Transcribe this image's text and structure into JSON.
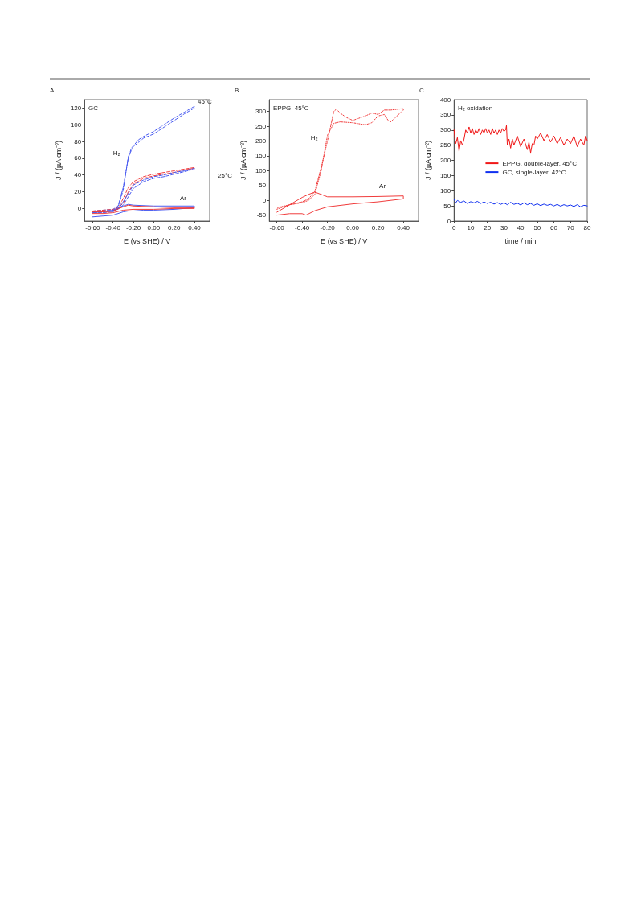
{
  "chart_data": [
    {
      "type": "line",
      "xlabel": "E (vs SHE) / V",
      "ylabel": "J / (µA cm⁻²)",
      "annotations": [
        "A",
        "GC",
        {
          "text": "45°C",
          "x": 0.4,
          "y": 122
        },
        {
          "text": "H₂",
          "x": -0.25,
          "y": 60
        },
        "25°C",
        {
          "text": "Ar",
          "x": 0.4,
          "y": 3
        }
      ],
      "xlim": [
        -0.68,
        0.55
      ],
      "xticks": [
        {
          "value": -0.6,
          "label": "-0.60"
        },
        {
          "value": -0.4,
          "label": "-0.40"
        },
        {
          "value": -0.2,
          "label": "-0.20"
        },
        {
          "value": 0,
          "label": "0.00"
        },
        {
          "value": 0.2,
          "label": "0.20"
        },
        {
          "value": 0.4,
          "label": "0.40"
        }
      ],
      "ylim": [
        -15,
        130
      ],
      "yticks": [
        0,
        20,
        40,
        60,
        80,
        100,
        120
      ],
      "grid": false,
      "series": [
        {
          "color": "#4a5cf0",
          "line_style": "dashed",
          "x": [
            -0.6,
            -0.5,
            -0.4,
            -0.35,
            -0.3,
            -0.25,
            -0.22,
            -0.15,
            -0.1,
            0,
            0.1,
            0.2,
            0.3,
            0.4,
            0.4,
            0.3,
            0.2,
            0.1,
            0,
            -0.1,
            -0.2,
            -0.25,
            -0.3,
            -0.35,
            -0.4,
            -0.5,
            -0.6
          ],
          "values": [
            -3,
            -2,
            -1,
            3,
            25,
            60,
            72,
            82,
            86,
            92,
            100,
            108,
            115,
            122,
            120,
            113,
            105,
            97,
            89,
            84,
            74,
            62,
            22,
            2,
            -3,
            -4,
            -4
          ]
        },
        {
          "color": "#f03c3c",
          "line_style": "dashed",
          "x": [
            -0.6,
            -0.5,
            -0.4,
            -0.35,
            -0.3,
            -0.25,
            -0.2,
            -0.1,
            0,
            0.1,
            0.2,
            0.3,
            0.4,
            0.4,
            0.3,
            0.2,
            0.1,
            0,
            -0.1,
            -0.2,
            -0.25,
            -0.3,
            -0.4,
            -0.5,
            -0.6
          ],
          "values": [
            -3,
            -2,
            -1,
            0,
            12,
            25,
            32,
            38,
            41,
            43,
            45,
            47,
            49,
            48,
            46,
            43,
            41,
            39,
            36,
            29,
            20,
            6,
            -3,
            -4,
            -4
          ]
        },
        {
          "color": "#4a5cf0",
          "line_style": "dashed",
          "x": [
            -0.6,
            -0.5,
            -0.4,
            -0.35,
            -0.3,
            -0.25,
            -0.2,
            -0.1,
            0,
            0.1,
            0.2,
            0.3,
            0.4,
            0.4,
            0.3,
            0.2,
            0.1,
            0,
            -0.1,
            -0.2,
            -0.3,
            -0.4,
            -0.5,
            -0.6
          ],
          "values": [
            -4,
            -3,
            -2,
            -1,
            8,
            18,
            28,
            34,
            38,
            40,
            43,
            45,
            48,
            47,
            44,
            41,
            38,
            36,
            32,
            24,
            4,
            -4,
            -5,
            -5
          ]
        },
        {
          "color": "#4a5cf0",
          "line_style": "solid",
          "x": [
            -0.6,
            -0.5,
            -0.4,
            -0.3,
            -0.25,
            -0.2,
            -0.1,
            0,
            0.2,
            0.4,
            0.4,
            0.2,
            0,
            -0.2,
            -0.25,
            -0.3,
            -0.4,
            -0.5,
            -0.6
          ],
          "values": [
            -10,
            -9,
            -8,
            -4,
            -3,
            -3,
            -2,
            -2,
            -1,
            1,
            3,
            3,
            3,
            4,
            5,
            3,
            -2,
            -4,
            -5
          ]
        },
        {
          "color": "#f03c3c",
          "line_style": "solid",
          "x": [
            -0.6,
            -0.5,
            -0.4,
            -0.3,
            -0.2,
            0,
            0.2,
            0.4,
            0.4,
            0.2,
            0,
            -0.2,
            -0.25,
            -0.3,
            -0.4,
            -0.5,
            -0.6
          ],
          "values": [
            -6,
            -6,
            -5,
            -2,
            -1,
            -1,
            0,
            0,
            1,
            1,
            2,
            3,
            4,
            2,
            -3,
            -4,
            -4
          ]
        }
      ]
    },
    {
      "type": "line",
      "xlabel": "E (vs SHE) / V",
      "ylabel": "J / (µA cm⁻²)",
      "annotations": [
        "B",
        "EPPG, 45°C",
        {
          "text": "H₂",
          "x": -0.2,
          "y": 200
        },
        {
          "text": "Ar",
          "x": 0.4,
          "y": 15
        }
      ],
      "xlim": [
        -0.66,
        0.52
      ],
      "xticks": [
        {
          "value": -0.6,
          "label": "-0.60"
        },
        {
          "value": -0.4,
          "label": "-0.40"
        },
        {
          "value": -0.2,
          "label": "-0.20"
        },
        {
          "value": 0,
          "label": "0.00"
        },
        {
          "value": 0.2,
          "label": "0.20"
        },
        {
          "value": 0.4,
          "label": "0.40"
        }
      ],
      "ylim": [
        -70,
        340
      ],
      "yticks": [
        -50,
        0,
        50,
        100,
        150,
        200,
        250,
        300
      ],
      "grid": false,
      "series": [
        {
          "color": "#f03c3c",
          "line_style": "dotted",
          "x": [
            -0.6,
            -0.5,
            -0.4,
            -0.35,
            -0.3,
            -0.25,
            -0.2,
            -0.15,
            -0.1,
            0,
            0.1,
            0.15,
            0.2,
            0.25,
            0.28,
            0.3,
            0.35,
            0.4,
            0.4,
            0.3,
            0.25,
            0.2,
            0.15,
            0.1,
            0,
            -0.05,
            -0.1,
            -0.13,
            -0.15,
            -0.2,
            -0.25,
            -0.3,
            -0.35,
            -0.4,
            -0.5,
            -0.6
          ],
          "values": [
            -30,
            -15,
            -8,
            0,
            20,
            100,
            220,
            260,
            265,
            262,
            255,
            262,
            285,
            290,
            270,
            265,
            285,
            305,
            310,
            305,
            305,
            290,
            295,
            285,
            270,
            280,
            295,
            308,
            300,
            200,
            110,
            30,
            5,
            -5,
            -15,
            -25
          ]
        },
        {
          "color": "#f03c3c",
          "line_style": "solid",
          "x": [
            -0.6,
            -0.5,
            -0.4,
            -0.37,
            -0.3,
            -0.2,
            0,
            0.2,
            0.4,
            0.4,
            0.2,
            0,
            -0.2,
            -0.3,
            -0.35,
            -0.4,
            -0.5,
            -0.6
          ],
          "values": [
            -50,
            -45,
            -45,
            -50,
            -35,
            -22,
            -12,
            -5,
            5,
            15,
            13,
            12,
            12,
            28,
            20,
            10,
            -15,
            -40
          ]
        }
      ]
    },
    {
      "type": "line",
      "xlabel": "time / min",
      "ylabel": "J / (µA cm⁻²)",
      "annotations": [
        "C",
        "H₂ oxidation"
      ],
      "xlim": [
        0,
        80
      ],
      "xticks": [
        0,
        10,
        20,
        30,
        40,
        50,
        60,
        70,
        80
      ],
      "ylim": [
        0,
        400
      ],
      "yticks": [
        0,
        50,
        100,
        150,
        200,
        250,
        300,
        350,
        400
      ],
      "grid": false,
      "legend": "right",
      "series": [
        {
          "name": "EPPG, double-layer, 45°C",
          "color": "#f01818",
          "line_style": "solid",
          "x": [
            0,
            0.5,
            1,
            2,
            3,
            4,
            5,
            6,
            7,
            8,
            9,
            10,
            11,
            12,
            13,
            14,
            15,
            16,
            17,
            18,
            19,
            20,
            21,
            22,
            23,
            24,
            25,
            26,
            27,
            28,
            29,
            30,
            31,
            31.5,
            32,
            33,
            34,
            35,
            36,
            38,
            40,
            42,
            44,
            45,
            46,
            47,
            48,
            49,
            50,
            52,
            54,
            56,
            58,
            60,
            62,
            64,
            66,
            68,
            70,
            72,
            74,
            76,
            78,
            79,
            80
          ],
          "values": [
            300,
            270,
            255,
            275,
            230,
            265,
            250,
            270,
            300,
            290,
            310,
            290,
            305,
            285,
            300,
            290,
            305,
            285,
            300,
            290,
            305,
            290,
            300,
            285,
            305,
            290,
            300,
            285,
            300,
            290,
            305,
            295,
            300,
            315,
            250,
            270,
            240,
            270,
            250,
            280,
            245,
            270,
            235,
            260,
            225,
            255,
            250,
            280,
            270,
            290,
            265,
            285,
            260,
            280,
            255,
            275,
            250,
            270,
            255,
            280,
            245,
            270,
            250,
            280,
            265
          ]
        },
        {
          "name": "GC, single-layer, 42°C",
          "color": "#1030f0",
          "line_style": "solid",
          "x": [
            0,
            1,
            2,
            4,
            6,
            8,
            10,
            12,
            14,
            16,
            18,
            20,
            22,
            24,
            26,
            28,
            30,
            32,
            34,
            36,
            38,
            40,
            42,
            44,
            46,
            48,
            50,
            52,
            54,
            56,
            58,
            60,
            62,
            64,
            66,
            68,
            70,
            72,
            74,
            76,
            78,
            80
          ],
          "values": [
            72,
            60,
            68,
            62,
            66,
            58,
            64,
            60,
            65,
            58,
            63,
            58,
            62,
            56,
            61,
            55,
            60,
            54,
            62,
            55,
            59,
            53,
            60,
            54,
            58,
            52,
            57,
            51,
            56,
            52,
            55,
            50,
            55,
            49,
            54,
            50,
            53,
            48,
            54,
            47,
            52,
            50
          ]
        }
      ]
    }
  ]
}
